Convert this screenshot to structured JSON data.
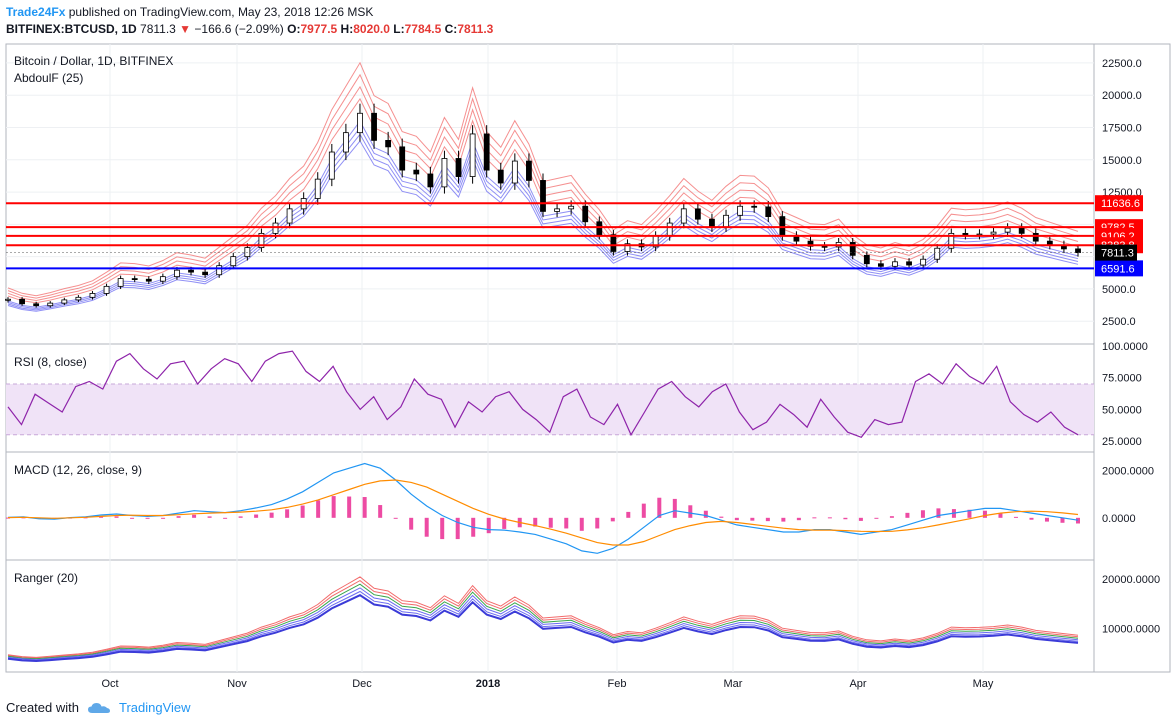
{
  "header": {
    "brand": "Trade24Fx",
    "published": "published on TradingView.com, May 23, 2018 12:26 MSK",
    "symbol": "BITFINEX:BTCUSD, 1D",
    "last": "7811.3",
    "change": "−166.6 (−2.09%)",
    "o_label": "O:",
    "o": "7977.5",
    "h_label": "H:",
    "h": "8020.0",
    "l_label": "L:",
    "l": "7784.5",
    "c_label": "C:",
    "c": "7811.3"
  },
  "footer": {
    "created_with": "Created with",
    "brand": "TradingView"
  },
  "chart_data": [
    {
      "type": "candlestick",
      "title": "Bitcoin / Dollar, 1D, BITFINEX",
      "indicator": "AbdoulF (25)",
      "x_labels": [
        "Oct",
        "Nov",
        "Dec",
        "2018",
        "Feb",
        "Mar",
        "Apr",
        "May"
      ],
      "y_ticks": [
        2500,
        5000,
        7500,
        10000,
        12500,
        15000,
        17500,
        20000,
        22500
      ],
      "y_tick_labels": [
        "2500.0",
        "5000.0",
        "7500.0",
        "10000.0",
        "12500.0",
        "15000.0",
        "17500.0",
        "20000.0",
        "22500.0"
      ],
      "ylim": [
        1200,
        23500
      ],
      "close_series": [
        4200,
        3850,
        3700,
        3900,
        4150,
        4350,
        4650,
        5200,
        5800,
        5750,
        5600,
        5950,
        6450,
        6300,
        6100,
        6800,
        7500,
        8200,
        9300,
        10100,
        11200,
        12000,
        13500,
        15600,
        17100,
        18600,
        16500,
        16000,
        14200,
        13900,
        12900,
        15100,
        13700,
        17000,
        14200,
        13200,
        14900,
        13400,
        11000,
        11200,
        11400,
        10200,
        9200,
        7900,
        8500,
        8250,
        9100,
        10100,
        11200,
        10400,
        9800,
        10700,
        11400,
        11350,
        10600,
        9100,
        8700,
        8300,
        8250,
        8600,
        7600,
        6950,
        6750,
        7100,
        6850,
        7300,
        8150,
        9300,
        9200,
        9250,
        9400,
        9700,
        9300,
        8700,
        8400,
        8100,
        7811.3
      ],
      "hlines": [
        {
          "value": 11636.6,
          "label": "11636.6",
          "color": "#ff0000"
        },
        {
          "value": 9782.5,
          "label": "9782.5",
          "color": "#ff0000"
        },
        {
          "value": 9106.2,
          "label": "9106.2",
          "color": "#ff0000"
        },
        {
          "value": 8383.8,
          "label": "8383.8",
          "color": "#ff0000"
        },
        {
          "value": 6591.6,
          "label": "6591.6",
          "color": "#0000ff"
        }
      ],
      "last_price": {
        "value": 7811.3,
        "label": "7811.3",
        "color": "#000000"
      }
    },
    {
      "type": "line",
      "title": "RSI (8, close)",
      "y_tick_labels": [
        "100.0000",
        "75.0000",
        "50.0000",
        "25.0000"
      ],
      "y_ticks": [
        100,
        75,
        50,
        25
      ],
      "ylim": [
        18,
        100
      ],
      "band": [
        30,
        70
      ],
      "values": [
        52,
        38,
        62,
        55,
        48,
        68,
        72,
        66,
        88,
        94,
        82,
        74,
        86,
        88,
        70,
        82,
        90,
        86,
        72,
        88,
        94,
        96,
        80,
        72,
        84,
        64,
        50,
        60,
        42,
        52,
        74,
        62,
        58,
        36,
        56,
        48,
        60,
        64,
        50,
        42,
        32,
        60,
        66,
        44,
        38,
        54,
        30,
        48,
        66,
        72,
        60,
        52,
        64,
        70,
        48,
        34,
        40,
        54,
        46,
        36,
        58,
        44,
        32,
        28,
        42,
        38,
        40,
        72,
        78,
        70,
        86,
        76,
        70,
        84,
        56,
        46,
        40,
        48,
        36,
        30
      ]
    },
    {
      "type": "line",
      "title": "MACD (12, 26, close, 9)",
      "y_tick_labels": [
        "2000.0000",
        "0.0000"
      ],
      "y_ticks": [
        2000,
        0
      ],
      "ylim": [
        -1700,
        2700
      ],
      "macd": [
        20,
        40,
        -40,
        -60,
        10,
        40,
        120,
        160,
        100,
        60,
        100,
        200,
        300,
        260,
        220,
        300,
        420,
        560,
        800,
        1100,
        1500,
        1900,
        2100,
        2300,
        2100,
        1600,
        1000,
        500,
        100,
        -200,
        -400,
        -500,
        -520,
        -600,
        -700,
        -900,
        -1100,
        -1400,
        -1500,
        -1300,
        -900,
        -400,
        100,
        300,
        200,
        100,
        -100,
        -300,
        -400,
        -500,
        -600,
        -600,
        -500,
        -500,
        -600,
        -700,
        -600,
        -500,
        -300,
        -100,
        100,
        200,
        300,
        400,
        400,
        300,
        200,
        100,
        0,
        -100
      ],
      "signal": [
        10,
        20,
        0,
        -20,
        0,
        20,
        60,
        100,
        110,
        100,
        100,
        130,
        170,
        200,
        220,
        240,
        280,
        340,
        440,
        580,
        760,
        980,
        1200,
        1420,
        1560,
        1600,
        1500,
        1300,
        1000,
        700,
        400,
        150,
        -50,
        -200,
        -330,
        -480,
        -650,
        -850,
        -1050,
        -1150,
        -1150,
        -1000,
        -750,
        -500,
        -330,
        -200,
        -150,
        -200,
        -280,
        -360,
        -440,
        -500,
        -520,
        -520,
        -540,
        -570,
        -580,
        -570,
        -510,
        -420,
        -300,
        -170,
        -40,
        100,
        200,
        260,
        280,
        260,
        210,
        140
      ]
    },
    {
      "type": "line",
      "title": "Ranger (20)",
      "y_tick_labels": [
        "20000.0000",
        "10000.0000"
      ],
      "y_ticks": [
        20000,
        10000
      ],
      "ylim": [
        1500,
        23500
      ]
    }
  ]
}
